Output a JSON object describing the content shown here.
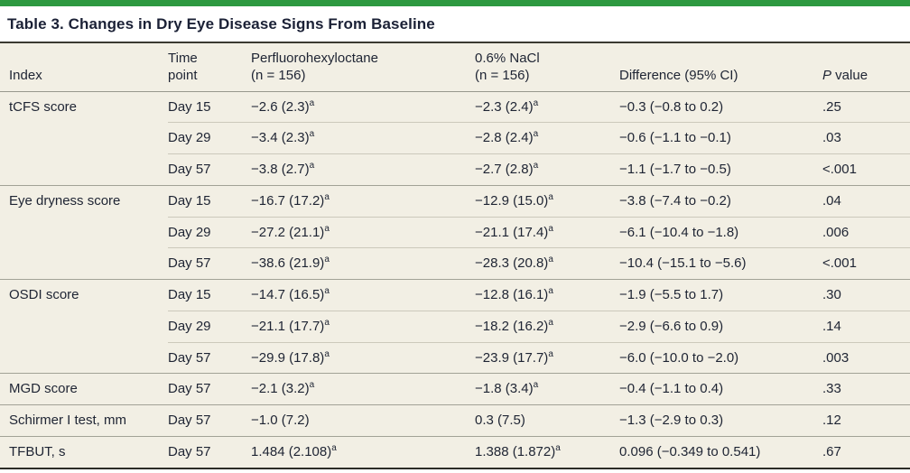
{
  "page": {
    "title": "Table 3. Changes in Dry Eye Disease Signs From Baseline"
  },
  "colors": {
    "accent_green": "#2d9940",
    "table_background": "#f2efe4",
    "text": "#1e2433"
  },
  "table": {
    "columns": {
      "index": {
        "label": "Index"
      },
      "time": {
        "label": "Time",
        "sublabel": "point"
      },
      "drug": {
        "label": "Perfluorohexyloctane",
        "sublabel": "(n = 156)"
      },
      "control": {
        "label": "0.6% NaCl",
        "sublabel": "(n = 156)"
      },
      "difference": {
        "label": "Difference (95% CI)"
      },
      "pvalue": {
        "italic": "P",
        "rest": " value"
      }
    },
    "groups": [
      {
        "index": "tCFS score",
        "rows": [
          {
            "time": "Day 15",
            "drug": "−2.6 (2.3)",
            "drug_sup": "a",
            "control": "−2.3 (2.4)",
            "control_sup": "a",
            "difference": "−0.3 (−0.8 to 0.2)",
            "p": ".25"
          },
          {
            "time": "Day 29",
            "drug": "−3.4 (2.3)",
            "drug_sup": "a",
            "control": "−2.8 (2.4)",
            "control_sup": "a",
            "difference": "−0.6 (−1.1 to −0.1)",
            "p": ".03"
          },
          {
            "time": "Day 57",
            "drug": "−3.8 (2.7)",
            "drug_sup": "a",
            "control": "−2.7 (2.8)",
            "control_sup": "a",
            "difference": "−1.1 (−1.7 to −0.5)",
            "p": "<.001"
          }
        ]
      },
      {
        "index": "Eye dryness score",
        "rows": [
          {
            "time": "Day 15",
            "drug": "−16.7 (17.2)",
            "drug_sup": "a",
            "control": "−12.9 (15.0)",
            "control_sup": "a",
            "difference": "−3.8 (−7.4 to −0.2)",
            "p": ".04"
          },
          {
            "time": "Day 29",
            "drug": "−27.2 (21.1)",
            "drug_sup": "a",
            "control": "−21.1 (17.4)",
            "control_sup": "a",
            "difference": "−6.1 (−10.4 to −1.8)",
            "p": ".006"
          },
          {
            "time": "Day 57",
            "drug": "−38.6 (21.9)",
            "drug_sup": "a",
            "control": "−28.3 (20.8)",
            "control_sup": "a",
            "difference": "−10.4 (−15.1 to −5.6)",
            "p": "<.001"
          }
        ]
      },
      {
        "index": "OSDI score",
        "rows": [
          {
            "time": "Day 15",
            "drug": "−14.7 (16.5)",
            "drug_sup": "a",
            "control": "−12.8 (16.1)",
            "control_sup": "a",
            "difference": "−1.9 (−5.5 to 1.7)",
            "p": ".30"
          },
          {
            "time": "Day 29",
            "drug": "−21.1 (17.7)",
            "drug_sup": "a",
            "control": "−18.2 (16.2)",
            "control_sup": "a",
            "difference": "−2.9 (−6.6 to 0.9)",
            "p": ".14"
          },
          {
            "time": "Day 57",
            "drug": "−29.9 (17.8)",
            "drug_sup": "a",
            "control": "−23.9 (17.7)",
            "control_sup": "a",
            "difference": "−6.0 (−10.0 to −2.0)",
            "p": ".003"
          }
        ]
      },
      {
        "index": "MGD score",
        "rows": [
          {
            "time": "Day 57",
            "drug": "−2.1 (3.2)",
            "drug_sup": "a",
            "control": "−1.8 (3.4)",
            "control_sup": "a",
            "difference": "−0.4 (−1.1 to 0.4)",
            "p": ".33"
          }
        ]
      },
      {
        "index": "Schirmer I test, mm",
        "rows": [
          {
            "time": "Day 57",
            "drug": "−1.0 (7.2)",
            "drug_sup": "",
            "control": "0.3 (7.5)",
            "control_sup": "",
            "difference": "−1.3 (−2.9 to 0.3)",
            "p": ".12"
          }
        ]
      },
      {
        "index": "TFBUT, s",
        "rows": [
          {
            "time": "Day 57",
            "drug": "1.484 (2.108)",
            "drug_sup": "a",
            "control": "1.388 (1.872)",
            "control_sup": "a",
            "difference": "0.096 (−0.349 to 0.541)",
            "p": ".67"
          }
        ]
      }
    ]
  }
}
